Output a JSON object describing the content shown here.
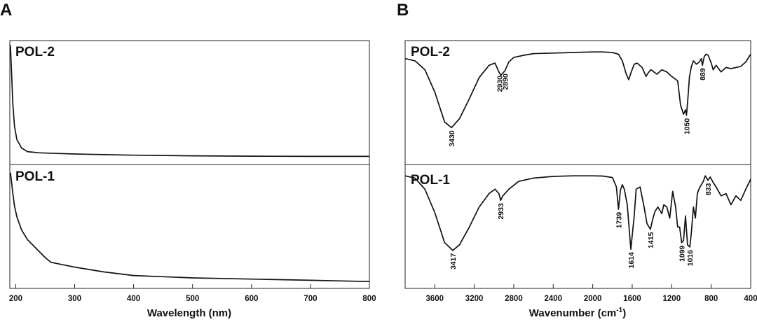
{
  "chart_data": [
    {
      "panel": "A",
      "type": "line",
      "xlabel": "Wavelength (nm)",
      "xlim": [
        190,
        800
      ],
      "x_ticks": [
        200,
        300,
        400,
        500,
        600,
        700,
        800
      ],
      "series": [
        {
          "name": "POL-2",
          "x": [
            191,
            193,
            195,
            198,
            202,
            210,
            220,
            240,
            270,
            300,
            350,
            400,
            500,
            600,
            700,
            800
          ],
          "y": [
            0.98,
            0.75,
            0.5,
            0.3,
            0.19,
            0.12,
            0.09,
            0.08,
            0.075,
            0.07,
            0.065,
            0.06,
            0.055,
            0.052,
            0.05,
            0.05
          ]
        },
        {
          "name": "POL-1",
          "x": [
            191,
            193,
            195,
            198,
            202,
            210,
            220,
            230,
            240,
            250,
            260,
            280,
            300,
            350,
            400,
            450,
            500,
            600,
            700,
            800
          ],
          "y": [
            0.95,
            0.87,
            0.78,
            0.67,
            0.58,
            0.47,
            0.39,
            0.34,
            0.29,
            0.24,
            0.2,
            0.18,
            0.16,
            0.12,
            0.09,
            0.08,
            0.07,
            0.06,
            0.05,
            0.04
          ]
        }
      ]
    },
    {
      "panel": "B",
      "type": "line",
      "xlabel": "Wavenumber (cm",
      "xlabel_sup": "-1",
      "xlabel_end": ")",
      "xlim": [
        3900,
        400
      ],
      "x_reversed": true,
      "x_ticks": [
        3600,
        3200,
        2800,
        2400,
        2000,
        1600,
        1200,
        800,
        400
      ],
      "series": [
        {
          "name": "POL-2",
          "x": [
            3900,
            3800,
            3700,
            3600,
            3500,
            3430,
            3350,
            3250,
            3150,
            3050,
            2990,
            2950,
            2930,
            2910,
            2890,
            2850,
            2800,
            2700,
            2600,
            2400,
            2200,
            2000,
            1900,
            1800,
            1740,
            1700,
            1660,
            1635,
            1610,
            1580,
            1550,
            1500,
            1460,
            1440,
            1410,
            1380,
            1350,
            1300,
            1250,
            1200,
            1170,
            1140,
            1110,
            1080,
            1060,
            1050,
            1040,
            1020,
            1000,
            980,
            950,
            920,
            900,
            889,
            870,
            850,
            830,
            800,
            780,
            750,
            700,
            650,
            600,
            550,
            500,
            450,
            400
          ],
          "y": [
            0.92,
            0.9,
            0.82,
            0.62,
            0.35,
            0.3,
            0.38,
            0.56,
            0.75,
            0.86,
            0.88,
            0.8,
            0.77,
            0.79,
            0.81,
            0.89,
            0.93,
            0.95,
            0.965,
            0.97,
            0.975,
            0.98,
            0.98,
            0.975,
            0.96,
            0.9,
            0.78,
            0.73,
            0.8,
            0.87,
            0.88,
            0.84,
            0.76,
            0.79,
            0.82,
            0.8,
            0.78,
            0.82,
            0.8,
            0.76,
            0.74,
            0.72,
            0.5,
            0.42,
            0.46,
            0.41,
            0.52,
            0.76,
            0.85,
            0.9,
            0.87,
            0.89,
            0.92,
            0.86,
            0.94,
            0.96,
            0.95,
            0.88,
            0.82,
            0.86,
            0.8,
            0.84,
            0.83,
            0.84,
            0.85,
            0.89,
            0.96
          ]
        },
        {
          "name": "POL-1",
          "x": [
            3900,
            3800,
            3700,
            3600,
            3500,
            3417,
            3350,
            3250,
            3150,
            3050,
            2990,
            2950,
            2933,
            2910,
            2850,
            2750,
            2600,
            2400,
            2200,
            2000,
            1900,
            1800,
            1760,
            1739,
            1720,
            1700,
            1680,
            1650,
            1614,
            1580,
            1560,
            1520,
            1480,
            1450,
            1430,
            1415,
            1395,
            1370,
            1340,
            1300,
            1280,
            1250,
            1220,
            1190,
            1160,
            1140,
            1120,
            1099,
            1080,
            1060,
            1040,
            1016,
            1000,
            980,
            960,
            940,
            920,
            900,
            880,
            860,
            833,
            810,
            780,
            750,
            700,
            650,
            600,
            550,
            500,
            450,
            400
          ],
          "y": [
            0.98,
            0.96,
            0.86,
            0.65,
            0.38,
            0.31,
            0.36,
            0.52,
            0.7,
            0.82,
            0.86,
            0.82,
            0.76,
            0.8,
            0.86,
            0.93,
            0.96,
            0.975,
            0.98,
            0.98,
            0.978,
            0.965,
            0.88,
            0.68,
            0.85,
            0.9,
            0.86,
            0.72,
            0.32,
            0.62,
            0.86,
            0.88,
            0.7,
            0.55,
            0.52,
            0.5,
            0.58,
            0.66,
            0.7,
            0.64,
            0.72,
            0.7,
            0.6,
            0.84,
            0.7,
            0.52,
            0.52,
            0.38,
            0.4,
            0.62,
            0.36,
            0.34,
            0.48,
            0.7,
            0.6,
            0.82,
            0.87,
            0.9,
            0.93,
            0.98,
            0.94,
            0.97,
            0.92,
            0.88,
            0.8,
            0.82,
            0.72,
            0.8,
            0.76,
            0.86,
            0.95
          ]
        }
      ],
      "peaks": [
        {
          "series": "POL-2",
          "label": "3430",
          "x": 3430
        },
        {
          "series": "POL-2",
          "label": "2930",
          "x": 2945
        },
        {
          "series": "POL-2",
          "label": "2890",
          "x": 2890
        },
        {
          "series": "POL-2",
          "label": "1050",
          "x": 1050
        },
        {
          "series": "POL-2",
          "label": "889",
          "x": 889
        },
        {
          "series": "POL-1",
          "label": "3417",
          "x": 3417
        },
        {
          "series": "POL-1",
          "label": "2933",
          "x": 2933
        },
        {
          "series": "POL-1",
          "label": "1739",
          "x": 1739
        },
        {
          "series": "POL-1",
          "label": "1614",
          "x": 1614
        },
        {
          "series": "POL-1",
          "label": "1415",
          "x": 1415
        },
        {
          "series": "POL-1",
          "label": "1099",
          "x": 1099
        },
        {
          "series": "POL-1",
          "label": "1016",
          "x": 1016
        },
        {
          "series": "POL-1",
          "label": "833",
          "x": 833
        }
      ]
    }
  ]
}
